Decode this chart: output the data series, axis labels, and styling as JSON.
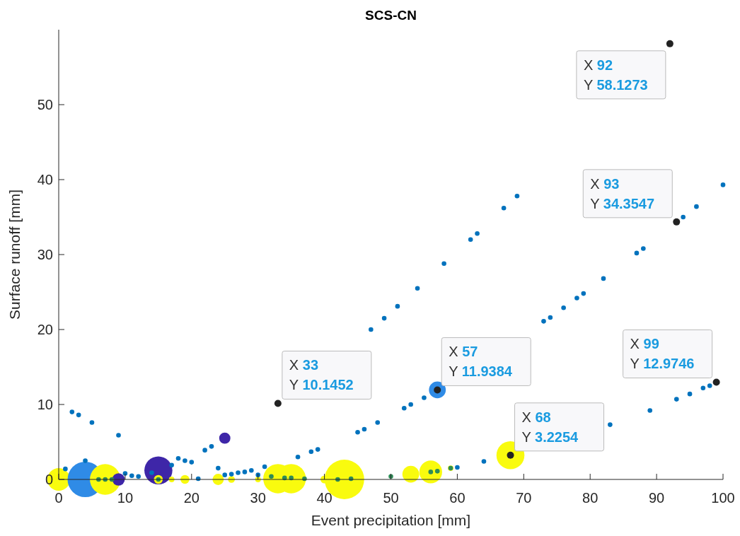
{
  "chart_data": {
    "type": "bubble",
    "title": "SCS-CN",
    "xlabel": "Event precipitation [mm]",
    "ylabel": "Surface runoff [mm]",
    "xlim": [
      0,
      100
    ],
    "ylim": [
      0,
      60
    ],
    "xticks": [
      0,
      10,
      20,
      30,
      40,
      50,
      60,
      70,
      80,
      90,
      100
    ],
    "yticks": [
      0,
      10,
      20,
      30,
      40,
      50
    ],
    "grid": false,
    "series": [
      {
        "x": [
          0,
          4,
          7,
          9,
          15,
          15,
          17,
          19,
          24,
          26,
          25,
          30,
          33,
          35,
          40,
          43,
          53,
          56,
          57,
          59,
          68
        ],
        "values": [
          0,
          0,
          0,
          0,
          1.2,
          0,
          0,
          0,
          0,
          0,
          5.5,
          0,
          0.1,
          0.1,
          0,
          0,
          0.7,
          1.0,
          11.9384,
          1.5,
          3.2254
        ],
        "sizes": [
          0.33,
          0.8,
          0.6,
          0.1,
          0.5,
          0.05,
          0.02,
          0.05,
          0.08,
          0.03,
          0.08,
          0.02,
          0.55,
          0.55,
          0.04,
          1,
          0.18,
          0.33,
          0.18,
          0.02,
          0.5
        ],
        "colors": [
          "#f9fb0e",
          "#2f8be6",
          "#f9fb0e",
          "#3e26a8",
          "#3e26a8",
          "#f9fb0e",
          "#f9fb0e",
          "#f9fb0e",
          "#f9fb0e",
          "#f9fb0e",
          "#3e26a8",
          "#f9fb0e",
          "#f9fb0e",
          "#f9fb0e",
          "#f9fb0e",
          "#f9fb0e",
          "#f9fb0e",
          "#f9fb0e",
          "#2f8be6",
          "#f9fb0e",
          "#f9fb0e"
        ]
      },
      {
        "type": "scatter",
        "marker": "circle",
        "color": "#0072bd",
        "x": [
          1,
          2,
          3,
          4,
          5,
          9,
          10,
          11,
          12,
          14,
          17,
          18,
          19,
          20,
          21,
          22,
          23,
          24,
          25,
          26,
          27,
          28,
          29,
          30,
          31,
          36,
          38,
          39,
          45,
          46,
          47,
          48,
          49,
          51,
          52,
          53,
          54,
          55,
          58,
          60,
          62,
          63,
          64,
          67,
          69,
          73,
          74,
          76,
          78,
          79,
          82,
          83,
          87,
          88,
          89,
          93,
          94,
          95,
          96,
          97,
          98,
          100
        ],
        "values": [
          1.4,
          9.0,
          8.6,
          2.5,
          7.6,
          5.9,
          0.8,
          0.5,
          0.4,
          0.9,
          1.9,
          2.8,
          2.5,
          2.3,
          0.1,
          3.9,
          4.4,
          1.5,
          0.6,
          0.7,
          0.9,
          1.0,
          1.2,
          0.6,
          1.7,
          3.0,
          3.7,
          4.0,
          6.3,
          6.7,
          20.0,
          7.6,
          21.5,
          23.1,
          9.5,
          10.0,
          25.5,
          10.9,
          28.8,
          1.6,
          32.0,
          32.8,
          2.4,
          36.2,
          37.8,
          21.1,
          21.6,
          22.9,
          24.2,
          24.8,
          26.8,
          7.3,
          30.2,
          30.8,
          9.2,
          10.7,
          35.0,
          11.4,
          36.4,
          12.2,
          12.5,
          39.3
        ]
      },
      {
        "type": "scatter",
        "marker": "circle",
        "color": "#2e8b57",
        "x": [
          6,
          7,
          8,
          15,
          32,
          34,
          35,
          37,
          42,
          44,
          50,
          56,
          57,
          59
        ],
        "values": [
          0,
          0,
          0,
          0,
          0.4,
          0.2,
          0.2,
          0.1,
          0,
          0.1,
          0.4,
          1.0,
          1.1,
          1.5
        ]
      },
      {
        "type": "scatter",
        "marker": "circle",
        "color": "#222222",
        "x": [
          92,
          93,
          33,
          57,
          99,
          68
        ],
        "values": [
          58.1273,
          34.3547,
          10.1452,
          11.9384,
          12.9746,
          3.2254
        ]
      }
    ],
    "annotations": [
      {
        "text": "X 92\nY 58.1273",
        "x": 92,
        "y": 58.1273
      },
      {
        "text": "X 93\nY 34.3547",
        "x": 93,
        "y": 34.3547
      },
      {
        "text": "X 33\nY 10.1452",
        "x": 33,
        "y": 10.1452
      },
      {
        "text": "X 57\nY 11.9384",
        "x": 57,
        "y": 11.9384
      },
      {
        "text": "X 99\nY 12.9746",
        "x": 99,
        "y": 12.9746
      },
      {
        "text": "X 68\nY 3.2254",
        "x": 68,
        "y": 3.2254
      }
    ]
  }
}
